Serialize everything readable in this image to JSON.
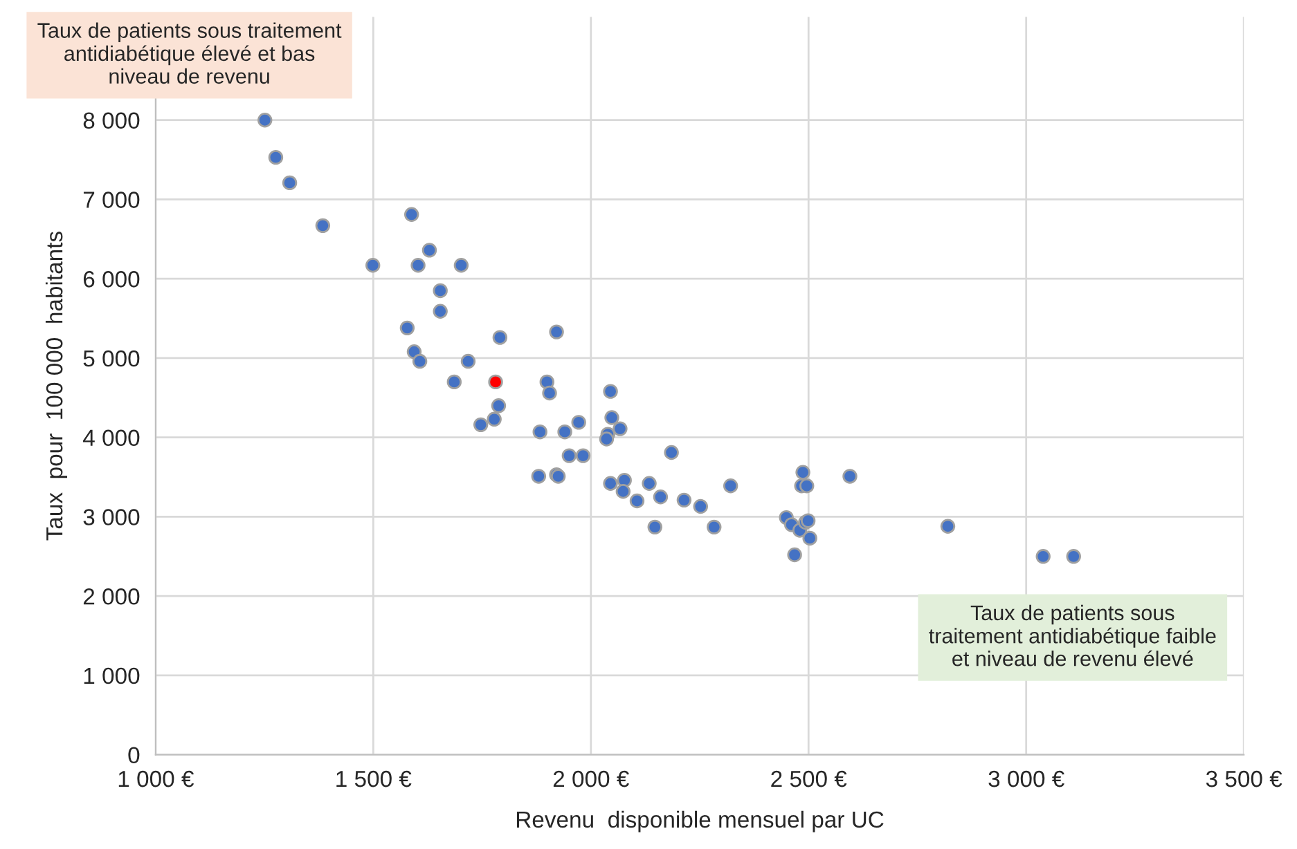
{
  "chart_data": {
    "type": "scatter",
    "xlabel": "Revenu  disponible mensuel par UC",
    "ylabel": "Taux  pour  100 000  habitants",
    "annotations": [
      "Taux de patients sous traitement\nantidiabétique élevé et bas\nniveau de revenu",
      "Taux de patients sous\ntraitement antidiabétique faible\net niveau de revenu élevé"
    ],
    "series": [
      {
        "color": "#4472c4",
        "x": [
          1251,
          1276,
          1308,
          1384,
          1499,
          1588,
          1629,
          1603,
          1702,
          1654,
          1654,
          1578,
          1594,
          1607,
          1718,
          1791,
          1921,
          1686,
          1899,
          1905,
          1788,
          1778,
          1747,
          1883,
          1940,
          1972,
          2045,
          2048,
          2067,
          2039,
          2036,
          2185,
          1950,
          1982,
          1880,
          1921,
          1925,
          2045,
          2077,
          2074,
          2134,
          2106,
          2160,
          2214,
          2252,
          2321,
          2147,
          2283,
          2487,
          2484,
          2496,
          2595,
          2449,
          2461,
          2480,
          2493,
          2499,
          2503,
          2468,
          2820,
          3039,
          3109
        ],
        "values": [
          8000,
          7530,
          7210,
          6670,
          6170,
          6810,
          6360,
          6170,
          6170,
          5850,
          5590,
          5380,
          5080,
          4960,
          4960,
          5260,
          5330,
          4700,
          4700,
          4560,
          4400,
          4230,
          4160,
          4070,
          4070,
          4190,
          4580,
          4250,
          4110,
          4040,
          3980,
          3810,
          3770,
          3770,
          3510,
          3530,
          3510,
          3420,
          3460,
          3320,
          3420,
          3200,
          3250,
          3210,
          3130,
          3390,
          2870,
          2870,
          3560,
          3390,
          3390,
          3510,
          2990,
          2900,
          2830,
          2930,
          2950,
          2730,
          2520,
          2880,
          2500,
          2500
        ]
      },
      {
        "color": "#ff0000",
        "x": [
          1781
        ],
        "values": [
          4700
        ]
      }
    ],
    "xlim": [
      1000,
      3500
    ],
    "xticks": [
      {
        "value": 1000,
        "label": "1 000 €"
      },
      {
        "value": 1500,
        "label": "1 500 €"
      },
      {
        "value": 2000,
        "label": "2 000 €"
      },
      {
        "value": 2500,
        "label": "2 500 €"
      },
      {
        "value": 3000,
        "label": "3 000 €"
      },
      {
        "value": 3500,
        "label": "3 500 €"
      }
    ],
    "ylim": [
      0,
      9300
    ],
    "yticks": [
      0,
      {
        "value": 1000,
        "label": "1 000"
      },
      {
        "value": 2000,
        "label": "2 000"
      },
      {
        "value": 3000,
        "label": "3 000"
      },
      {
        "value": 4000,
        "label": "4 000"
      },
      {
        "value": 5000,
        "label": "5 000"
      },
      {
        "value": 6000,
        "label": "6 000"
      },
      {
        "value": 7000,
        "label": "7 000"
      },
      {
        "value": 8000,
        "label": "8 000"
      }
    ],
    "grid": true,
    "legend": false,
    "marker": "circle"
  }
}
